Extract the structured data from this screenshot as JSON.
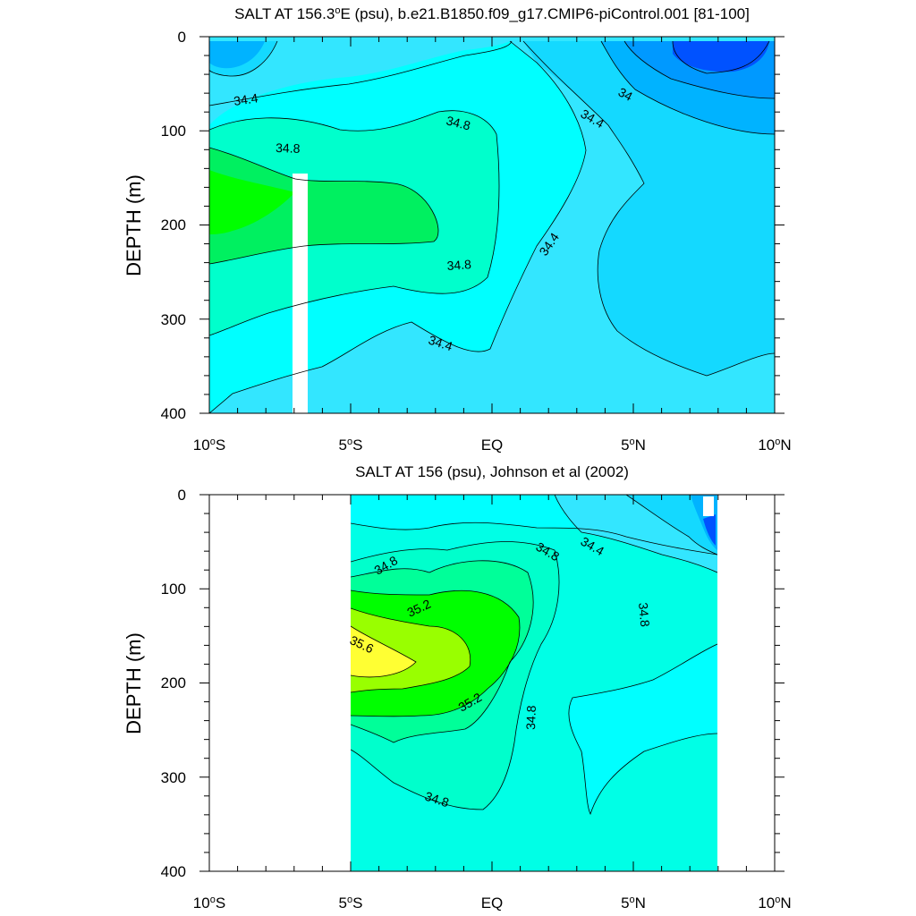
{
  "figure": {
    "panels": [
      {
        "title_main": "SALT AT 156.3",
        "title_sup": "o",
        "title_rest": "E (psu), b.e21.B1850.f09_g17.CMIP6-piControl.001 [81-100]",
        "ylabel": "DEPTH (m)",
        "yticks": [
          "0",
          "100",
          "200",
          "300",
          "400"
        ],
        "xticks": [
          {
            "pre": "10",
            "sup": "o",
            "post": "S"
          },
          {
            "pre": "5",
            "sup": "o",
            "post": "S"
          },
          {
            "pre": "EQ",
            "sup": "",
            "post": ""
          },
          {
            "pre": "5",
            "sup": "o",
            "post": "N"
          },
          {
            "pre": "10",
            "sup": "o",
            "post": "N"
          }
        ],
        "contour_labels": [
          "34.4",
          "34.8",
          "34.8",
          "34.8",
          "34.4",
          "34.4",
          "34.4",
          "34"
        ]
      },
      {
        "title_main": "SALT AT 156 (psu), Johnson et al (2002)",
        "title_sup": "",
        "title_rest": "",
        "ylabel": "DEPTH (m)",
        "yticks": [
          "0",
          "100",
          "200",
          "300",
          "400"
        ],
        "xticks": [
          {
            "pre": "10",
            "sup": "o",
            "post": "S"
          },
          {
            "pre": "5",
            "sup": "o",
            "post": "S"
          },
          {
            "pre": "EQ",
            "sup": "",
            "post": ""
          },
          {
            "pre": "5",
            "sup": "o",
            "post": "N"
          },
          {
            "pre": "10",
            "sup": "o",
            "post": "N"
          }
        ],
        "contour_labels": [
          "34.8",
          "35.2",
          "35.6",
          "35.2",
          "34.8",
          "34.8",
          "34.4",
          "34.8",
          "34.8"
        ]
      }
    ]
  },
  "chart_data": [
    {
      "type": "heatmap",
      "title": "SALT AT 156.3°E (psu), b.e21.B1850.f09_g17.CMIP6-piControl.001 [81-100]",
      "xlabel": "",
      "ylabel": "DEPTH (m)",
      "xlim": [
        -10,
        10
      ],
      "ylim": [
        400,
        0
      ],
      "x_tick_values": [
        -10,
        -5,
        0,
        5,
        10
      ],
      "y_tick_values": [
        0,
        100,
        200,
        300,
        400
      ],
      "contour_levels": [
        33.6,
        33.8,
        34.0,
        34.2,
        34.4,
        34.6,
        34.8,
        35.0,
        35.2
      ],
      "labeled_contours": [
        34.0,
        34.4,
        34.8
      ],
      "max_region": {
        "latitude_range": [
          -10,
          -7
        ],
        "depth_range": [
          140,
          230
        ],
        "salinity": 35.0
      },
      "min_region": {
        "latitude_range": [
          6,
          9
        ],
        "depth_range": [
          0,
          40
        ],
        "salinity": 33.6
      },
      "missing_column": {
        "latitude_range": [
          -7,
          -6.5
        ],
        "depth_range": [
          145,
          400
        ]
      }
    },
    {
      "type": "heatmap",
      "title": "SALT AT 156 (psu), Johnson et al (2002)",
      "xlabel": "",
      "ylabel": "DEPTH (m)",
      "xlim": [
        -10,
        10
      ],
      "ylim": [
        400,
        0
      ],
      "x_tick_values": [
        -10,
        -5,
        0,
        5,
        10
      ],
      "y_tick_values": [
        0,
        100,
        200,
        300,
        400
      ],
      "data_extent_latitude": [
        -5,
        8
      ],
      "contour_levels": [
        33.6,
        34.0,
        34.4,
        34.6,
        34.8,
        35.0,
        35.2,
        35.4,
        35.6
      ],
      "labeled_contours": [
        34.4,
        34.8,
        35.2,
        35.6
      ],
      "max_region": {
        "latitude_range": [
          -5,
          -2.5
        ],
        "depth_range": [
          140,
          195
        ],
        "salinity": 35.6
      },
      "min_region": {
        "latitude_range": [
          7.2,
          8
        ],
        "depth_range": [
          0,
          60
        ],
        "salinity": 33.6
      }
    }
  ]
}
